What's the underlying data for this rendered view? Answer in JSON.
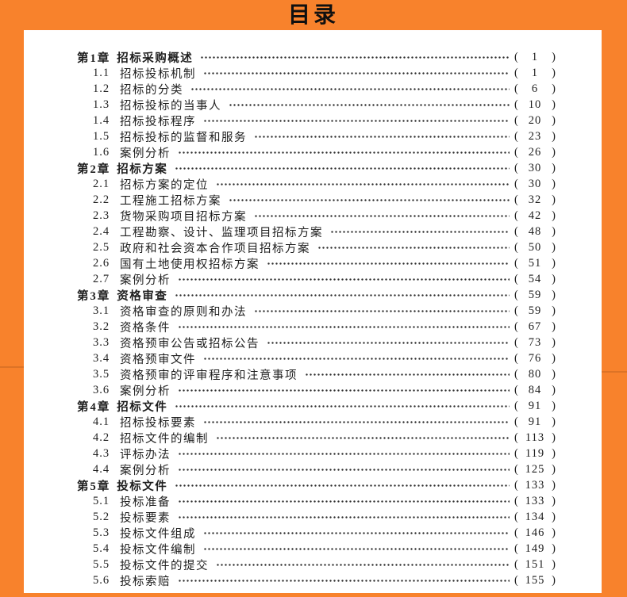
{
  "page": {
    "title": "目录"
  },
  "theme": {
    "frame_color": "#F8822C",
    "paper_color": "#FFFFFF",
    "text_color": "#1E1E1E",
    "title_color": "#101010"
  },
  "toc": {
    "chapters": [
      {
        "label": "第1章",
        "title": "招标采购概述",
        "page": "1",
        "sections": [
          {
            "num": "1.1",
            "title": "招标投标机制",
            "page": "1"
          },
          {
            "num": "1.2",
            "title": "招标的分类",
            "page": "6"
          },
          {
            "num": "1.3",
            "title": "招标投标的当事人",
            "page": "10"
          },
          {
            "num": "1.4",
            "title": "招标投标程序",
            "page": "20"
          },
          {
            "num": "1.5",
            "title": "招标投标的监督和服务",
            "page": "23"
          },
          {
            "num": "1.6",
            "title": "案例分析",
            "page": "26"
          }
        ]
      },
      {
        "label": "第2章",
        "title": "招标方案",
        "page": "30",
        "sections": [
          {
            "num": "2.1",
            "title": "招标方案的定位",
            "page": "30"
          },
          {
            "num": "2.2",
            "title": "工程施工招标方案",
            "page": "32"
          },
          {
            "num": "2.3",
            "title": "货物采购项目招标方案",
            "page": "42"
          },
          {
            "num": "2.4",
            "title": "工程勘察、设计、监理项目招标方案",
            "page": "48"
          },
          {
            "num": "2.5",
            "title": "政府和社会资本合作项目招标方案",
            "page": "50"
          },
          {
            "num": "2.6",
            "title": "国有土地使用权招标方案",
            "page": "51"
          },
          {
            "num": "2.7",
            "title": "案例分析",
            "page": "54"
          }
        ]
      },
      {
        "label": "第3章",
        "title": "资格审查",
        "page": "59",
        "sections": [
          {
            "num": "3.1",
            "title": "资格审查的原则和办法",
            "page": "59"
          },
          {
            "num": "3.2",
            "title": "资格条件",
            "page": "67"
          },
          {
            "num": "3.3",
            "title": "资格预审公告或招标公告",
            "page": "73"
          },
          {
            "num": "3.4",
            "title": "资格预审文件",
            "page": "76"
          },
          {
            "num": "3.5",
            "title": "资格预审的评审程序和注意事项",
            "page": "80"
          },
          {
            "num": "3.6",
            "title": "案例分析",
            "page": "84"
          }
        ]
      },
      {
        "label": "第4章",
        "title": "招标文件",
        "page": "91",
        "sections": [
          {
            "num": "4.1",
            "title": "招标投标要素",
            "page": "91"
          },
          {
            "num": "4.2",
            "title": "招标文件的编制",
            "page": "113"
          },
          {
            "num": "4.3",
            "title": "评标办法",
            "page": "119"
          },
          {
            "num": "4.4",
            "title": "案例分析",
            "page": "125"
          }
        ]
      },
      {
        "label": "第5章",
        "title": "投标文件",
        "page": "133",
        "sections": [
          {
            "num": "5.1",
            "title": "投标准备",
            "page": "133"
          },
          {
            "num": "5.2",
            "title": "投标要素",
            "page": "134"
          },
          {
            "num": "5.3",
            "title": "投标文件组成",
            "page": "146"
          },
          {
            "num": "5.4",
            "title": "投标文件编制",
            "page": "149"
          },
          {
            "num": "5.5",
            "title": "投标文件的提交",
            "page": "151"
          },
          {
            "num": "5.6",
            "title": "投标索赔",
            "page": "155"
          }
        ]
      }
    ]
  }
}
